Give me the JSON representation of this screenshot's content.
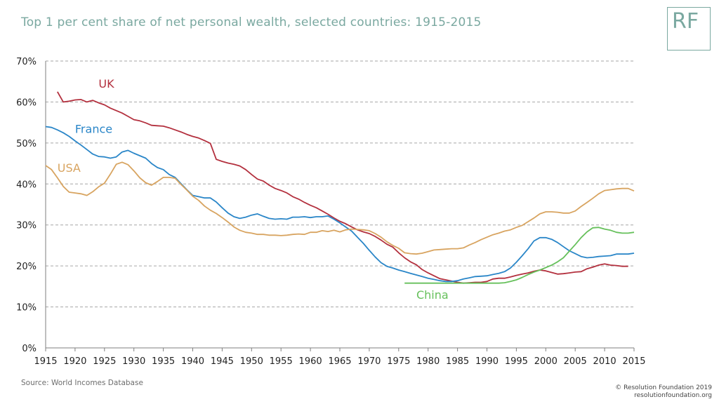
{
  "title": "Top 1 per cent share of net personal wealth, selected countries: 1915-2015",
  "logo": "RF",
  "source": "Source: World Incomes Database",
  "copyright": "© Resolution Foundation 2019",
  "website": "resolutionfoundation.org",
  "colors": {
    "UK": "#b3303e",
    "France": "#2a86c8",
    "USA": "#d8a460",
    "China": "#66c05b",
    "accent": "#7aa8a0"
  },
  "chart_data": {
    "type": "line",
    "xlim": [
      1915,
      2015
    ],
    "ylim": [
      0,
      70
    ],
    "x_ticks": [
      "1915",
      "1920",
      "1925",
      "1930",
      "1935",
      "1940",
      "1945",
      "1950",
      "1955",
      "1960",
      "1965",
      "1970",
      "1975",
      "1980",
      "1985",
      "1990",
      "1995",
      "2000",
      "2005",
      "2010",
      "2015"
    ],
    "y_ticks": [
      "0%",
      "10%",
      "20%",
      "30%",
      "40%",
      "50%",
      "60%",
      "70%"
    ],
    "grid": "horizontal-dashed",
    "series": [
      {
        "name": "UK",
        "x": [
          1917,
          1918,
          1919,
          1920,
          1921,
          1922,
          1923,
          1924,
          1925,
          1926,
          1927,
          1928,
          1929,
          1930,
          1931,
          1932,
          1933,
          1934,
          1935,
          1936,
          1937,
          1938,
          1939,
          1940,
          1941,
          1942,
          1943,
          1944,
          1945,
          1946,
          1947,
          1948,
          1949,
          1950,
          1951,
          1952,
          1953,
          1954,
          1955,
          1956,
          1957,
          1958,
          1959,
          1960,
          1961,
          1962,
          1963,
          1964,
          1965,
          1966,
          1967,
          1968,
          1969,
          1970,
          1971,
          1972,
          1973,
          1974,
          1975,
          1976,
          1977,
          1978,
          1979,
          1980,
          1981,
          1982,
          1983,
          1984,
          1985,
          1986,
          1987,
          1988,
          1989,
          1990,
          1991,
          1992,
          1993,
          1994,
          1995,
          1996,
          1997,
          1998,
          1999,
          2000,
          2001,
          2002,
          2003,
          2004,
          2005,
          2006,
          2007,
          2008,
          2009,
          2010,
          2011,
          2012,
          2013,
          2014
        ],
        "y": [
          62.5,
          60.0,
          60.2,
          60.5,
          60.6,
          60.0,
          60.4,
          59.8,
          59.3,
          58.5,
          57.9,
          57.3,
          56.5,
          55.7,
          55.4,
          54.9,
          54.3,
          54.2,
          54.1,
          53.7,
          53.2,
          52.7,
          52.1,
          51.6,
          51.2,
          50.6,
          49.9,
          46.0,
          45.5,
          45.1,
          44.8,
          44.4,
          43.5,
          42.3,
          41.2,
          40.7,
          39.7,
          38.9,
          38.4,
          37.8,
          36.9,
          36.3,
          35.5,
          34.8,
          34.2,
          33.4,
          32.6,
          31.7,
          30.9,
          30.3,
          29.5,
          28.8,
          28.3,
          27.9,
          27.2,
          26.3,
          25.3,
          24.6,
          23.2,
          22.0,
          21.0,
          20.3,
          19.1,
          18.3,
          17.6,
          16.9,
          16.6,
          16.3,
          16.0,
          15.8,
          15.9,
          16.0,
          16.0,
          16.2,
          16.8,
          17.0,
          17.0,
          17.3,
          17.7,
          18.0,
          18.3,
          18.7,
          19.0,
          18.8,
          18.4,
          18.0,
          18.1,
          18.3,
          18.5,
          18.6,
          19.3,
          19.7,
          20.2,
          20.5,
          20.2,
          20.1,
          19.9,
          19.9
        ],
        "label_at": [
          1924,
          63.5
        ]
      },
      {
        "name": "France",
        "x": [
          1915,
          1916,
          1917,
          1918,
          1919,
          1920,
          1921,
          1922,
          1923,
          1924,
          1925,
          1926,
          1927,
          1928,
          1929,
          1930,
          1931,
          1932,
          1933,
          1934,
          1935,
          1936,
          1937,
          1938,
          1939,
          1940,
          1941,
          1942,
          1943,
          1944,
          1945,
          1946,
          1947,
          1948,
          1949,
          1950,
          1951,
          1952,
          1953,
          1954,
          1955,
          1956,
          1957,
          1958,
          1959,
          1960,
          1961,
          1962,
          1963,
          1964,
          1965,
          1966,
          1967,
          1968,
          1969,
          1970,
          1971,
          1972,
          1973,
          1974,
          1975,
          1976,
          1977,
          1978,
          1979,
          1980,
          1981,
          1982,
          1983,
          1984,
          1985,
          1986,
          1987,
          1988,
          1989,
          1990,
          1991,
          1992,
          1993,
          1994,
          1995,
          1996,
          1997,
          1998,
          1999,
          2000,
          2001,
          2002,
          2003,
          2004,
          2005,
          2006,
          2007,
          2008,
          2009,
          2010,
          2011,
          2012,
          2013,
          2014,
          2015
        ],
        "y": [
          54.0,
          53.8,
          53.2,
          52.5,
          51.6,
          50.5,
          49.5,
          48.4,
          47.3,
          46.7,
          46.6,
          46.3,
          46.6,
          47.8,
          48.2,
          47.5,
          46.9,
          46.3,
          45.0,
          44.0,
          43.5,
          42.3,
          41.6,
          40.1,
          38.6,
          37.2,
          36.9,
          36.6,
          36.6,
          35.6,
          34.2,
          32.9,
          32.0,
          31.6,
          31.9,
          32.4,
          32.7,
          32.1,
          31.6,
          31.4,
          31.5,
          31.4,
          31.9,
          31.9,
          32.0,
          31.8,
          32.0,
          32.0,
          32.2,
          31.4,
          30.5,
          29.5,
          28.5,
          27.0,
          25.5,
          23.8,
          22.2,
          20.8,
          19.9,
          19.5,
          19.0,
          18.6,
          18.2,
          17.8,
          17.4,
          17.0,
          16.7,
          16.4,
          16.2,
          16.2,
          16.4,
          16.8,
          17.1,
          17.4,
          17.5,
          17.6,
          17.9,
          18.2,
          18.6,
          19.5,
          20.9,
          22.5,
          24.2,
          26.1,
          26.9,
          26.9,
          26.5,
          25.7,
          24.7,
          23.7,
          23.0,
          22.3,
          22.0,
          22.1,
          22.3,
          22.4,
          22.5,
          22.9,
          22.9,
          22.9,
          23.1
        ],
        "label_at": [
          1920,
          52.5
        ]
      },
      {
        "name": "USA",
        "x": [
          1915,
          1916,
          1917,
          1918,
          1919,
          1920,
          1921,
          1922,
          1923,
          1924,
          1925,
          1926,
          1927,
          1928,
          1929,
          1930,
          1931,
          1932,
          1933,
          1934,
          1935,
          1936,
          1937,
          1938,
          1939,
          1940,
          1941,
          1942,
          1943,
          1944,
          1945,
          1946,
          1947,
          1948,
          1949,
          1950,
          1951,
          1952,
          1953,
          1954,
          1955,
          1956,
          1957,
          1958,
          1959,
          1960,
          1961,
          1962,
          1963,
          1964,
          1965,
          1966,
          1967,
          1968,
          1969,
          1970,
          1971,
          1972,
          1973,
          1974,
          1975,
          1976,
          1977,
          1978,
          1979,
          1980,
          1981,
          1982,
          1983,
          1984,
          1985,
          1986,
          1987,
          1988,
          1989,
          1990,
          1991,
          1992,
          1993,
          1994,
          1995,
          1996,
          1997,
          1998,
          1999,
          2000,
          2001,
          2002,
          2003,
          2004,
          2005,
          2006,
          2007,
          2008,
          2009,
          2010,
          2011,
          2012,
          2013,
          2014,
          2015
        ],
        "y": [
          44.5,
          43.5,
          41.5,
          39.4,
          38.0,
          37.8,
          37.6,
          37.2,
          38.1,
          39.3,
          40.2,
          42.4,
          44.8,
          45.3,
          44.7,
          43.2,
          41.5,
          40.3,
          39.7,
          40.6,
          41.6,
          41.6,
          41.4,
          39.9,
          38.5,
          37.0,
          36.0,
          34.6,
          33.6,
          32.8,
          31.8,
          30.7,
          29.5,
          28.7,
          28.2,
          28.0,
          27.7,
          27.7,
          27.5,
          27.5,
          27.4,
          27.5,
          27.7,
          27.8,
          27.7,
          28.2,
          28.2,
          28.6,
          28.4,
          28.7,
          28.3,
          28.8,
          29.0,
          28.9,
          28.8,
          28.6,
          27.9,
          27.0,
          25.9,
          25.0,
          24.3,
          23.2,
          23.0,
          22.9,
          23.1,
          23.5,
          23.9,
          24.0,
          24.1,
          24.2,
          24.2,
          24.4,
          25.1,
          25.7,
          26.4,
          27.0,
          27.6,
          28.0,
          28.5,
          28.8,
          29.4,
          29.9,
          30.8,
          31.7,
          32.7,
          33.2,
          33.2,
          33.1,
          32.9,
          32.9,
          33.4,
          34.5,
          35.5,
          36.5,
          37.6,
          38.4,
          38.6,
          38.8,
          38.9,
          38.9,
          38.3
        ],
        "label_at": [
          1917,
          43.0
        ]
      },
      {
        "name": "China",
        "x": [
          1976,
          1978,
          1980,
          1982,
          1984,
          1986,
          1988,
          1990,
          1992,
          1993,
          1994,
          1995,
          1996,
          1997,
          1998,
          1999,
          2000,
          2001,
          2002,
          2003,
          2004,
          2005,
          2006,
          2007,
          2008,
          2009,
          2010,
          2011,
          2012,
          2013,
          2014,
          2015
        ],
        "y": [
          15.8,
          15.8,
          15.8,
          15.8,
          15.8,
          15.8,
          15.8,
          15.8,
          15.8,
          15.9,
          16.2,
          16.6,
          17.2,
          17.9,
          18.5,
          19.0,
          19.6,
          20.2,
          21.0,
          22.0,
          23.6,
          25.2,
          26.9,
          28.3,
          29.3,
          29.4,
          29.0,
          28.7,
          28.2,
          28.0,
          28.0,
          28.2
        ],
        "label_at": [
          1978,
          12.0
        ]
      }
    ]
  }
}
